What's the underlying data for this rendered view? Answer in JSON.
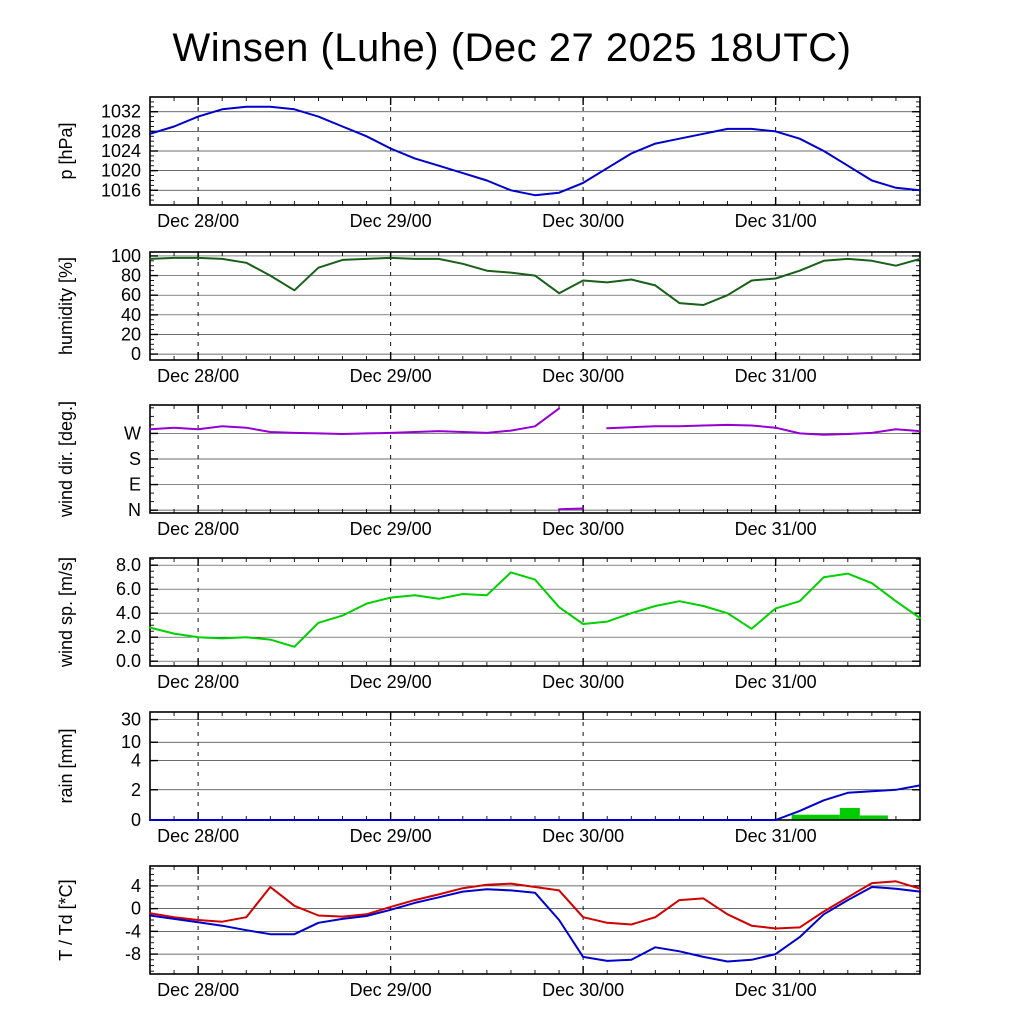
{
  "title": "Winsen (Luhe) (Dec 27 2025 18UTC)",
  "chart_data": {
    "type": "line",
    "title": "Winsen (Luhe) (Dec 27 2025 18UTC)",
    "x_start_hour": 0,
    "x_end_hour": 96,
    "x_hours_step": 3,
    "x_ticks": [
      {
        "hour": 6,
        "label": "Dec 28/00"
      },
      {
        "hour": 30,
        "label": "Dec 29/00"
      },
      {
        "hour": 54,
        "label": "Dec 30/00"
      },
      {
        "hour": 78,
        "label": "Dec 31/00"
      }
    ],
    "panels": [
      {
        "id": "pressure",
        "ylabel": "p [hPa]",
        "ymin": 1013,
        "ymax": 1035,
        "y_minor_step": 1,
        "yticks": [
          {
            "v": 1016,
            "label": "1016"
          },
          {
            "v": 1020,
            "label": "1020"
          },
          {
            "v": 1024,
            "label": "1024"
          },
          {
            "v": 1028,
            "label": "1028"
          },
          {
            "v": 1032,
            "label": "1032"
          }
        ],
        "series": [
          {
            "key": "p",
            "name": "pressure",
            "color": "#0000cc",
            "values": [
              1027.5,
              1029,
              1031,
              1032.5,
              1033,
              1033,
              1032.5,
              1031,
              1029,
              1027,
              1024.5,
              1022.5,
              1021,
              1019.5,
              1018,
              1016,
              1015,
              1015.5,
              1017.5,
              1020.5,
              1023.5,
              1025.5,
              1026.5,
              1027.5,
              1028.5,
              1028.5,
              1028,
              1026.5,
              1024,
              1021,
              1018,
              1016.5,
              1016
            ]
          }
        ]
      },
      {
        "id": "humidity",
        "ylabel": "humidity [%]",
        "ymin": -6,
        "ymax": 104,
        "y_minor_step": 5,
        "yticks": [
          {
            "v": 0,
            "label": "0"
          },
          {
            "v": 20,
            "label": "20"
          },
          {
            "v": 40,
            "label": "40"
          },
          {
            "v": 60,
            "label": "60"
          },
          {
            "v": 80,
            "label": "80"
          },
          {
            "v": 100,
            "label": "100"
          }
        ],
        "series": [
          {
            "key": "rh",
            "name": "relative humidity",
            "color": "#186018",
            "values": [
              97,
              98,
              98,
              97,
              93,
              80,
              65,
              88,
              96,
              97,
              98,
              97,
              97,
              92,
              85,
              83,
              80,
              62,
              75,
              73,
              76,
              70,
              52,
              50,
              60,
              75,
              77,
              85,
              95,
              97,
              95,
              90,
              97
            ]
          }
        ]
      },
      {
        "id": "wind-direction",
        "ylabel": "wind dir. [deg.]",
        "ymin": -10,
        "ymax": 370,
        "y_minor_step": 30,
        "yticks": [
          {
            "v": 0,
            "label": "N"
          },
          {
            "v": 90,
            "label": "E"
          },
          {
            "v": 180,
            "label": "S"
          },
          {
            "v": 270,
            "label": "W"
          }
        ],
        "series": [
          {
            "key": "dir",
            "name": "wind direction",
            "color": "#9400d3",
            "values": [
              285,
              290,
              285,
              295,
              290,
              275,
              272,
              270,
              268,
              270,
              272,
              275,
              278,
              275,
              272,
              280,
              295,
              358,
              null,
              288,
              292,
              295,
              295,
              298,
              300,
              298,
              290,
              270,
              265,
              268,
              272,
              285,
              278
            ]
          },
          {
            "key": "dir-north",
            "name": "wind direction north segment",
            "color": "#9400d3",
            "values": [
              null,
              null,
              null,
              null,
              null,
              null,
              null,
              null,
              null,
              null,
              null,
              null,
              null,
              null,
              null,
              null,
              null,
              3,
              6,
              null,
              null,
              null,
              null,
              null,
              null,
              null,
              null,
              null,
              null,
              null,
              null,
              null,
              null
            ]
          }
        ]
      },
      {
        "id": "wind-speed",
        "ylabel": "wind sp. [m/s]",
        "ymin": -0.4,
        "ymax": 8.6,
        "y_minor_step": 0.5,
        "yticks": [
          {
            "v": 0,
            "label": "0.0"
          },
          {
            "v": 2,
            "label": "2.0"
          },
          {
            "v": 4,
            "label": "4.0"
          },
          {
            "v": 6,
            "label": "6.0"
          },
          {
            "v": 8,
            "label": "8.0"
          }
        ],
        "series": [
          {
            "key": "ws",
            "name": "wind speed",
            "color": "#00d000",
            "values": [
              2.8,
              2.3,
              2.0,
              1.9,
              2.0,
              1.8,
              1.2,
              3.2,
              3.8,
              4.8,
              5.3,
              5.5,
              5.2,
              5.6,
              5.5,
              7.4,
              6.8,
              4.5,
              3.1,
              3.3,
              4.0,
              4.6,
              5.0,
              4.6,
              4.0,
              2.7,
              4.4,
              5.0,
              7.0,
              7.3,
              6.5,
              5.0,
              3.6
            ]
          }
        ]
      },
      {
        "id": "rain",
        "ylabel": "rain [mm]",
        "scale_points": [
          [
            0,
            0
          ],
          [
            2,
            0.28
          ],
          [
            4,
            0.55
          ],
          [
            10,
            0.72
          ],
          [
            30,
            0.93
          ]
        ],
        "yticks": [
          {
            "v": 0,
            "label": "0"
          },
          {
            "v": 2,
            "label": "2"
          },
          {
            "v": 4,
            "label": "4"
          },
          {
            "v": 10,
            "label": "10"
          },
          {
            "v": 30,
            "label": "30"
          }
        ],
        "bar_color": "#00cc00",
        "bars": [
          {
            "h0": 80,
            "h1": 86,
            "v": 0.35
          },
          {
            "h0": 86,
            "h1": 88.5,
            "v": 0.8
          },
          {
            "h0": 88.5,
            "h1": 92,
            "v": 0.3
          }
        ],
        "series": [
          {
            "key": "rain-accum",
            "name": "accumulated rain",
            "color": "#0000cc",
            "values": [
              0,
              0,
              0,
              0,
              0,
              0,
              0,
              0,
              0,
              0,
              0,
              0,
              0,
              0,
              0,
              0,
              0,
              0,
              0,
              0,
              0,
              0,
              0,
              0,
              0,
              0,
              0,
              0.6,
              1.3,
              1.8,
              1.9,
              2.0,
              2.3
            ]
          }
        ]
      },
      {
        "id": "temperature",
        "ylabel": "T / Td [*C]",
        "ymin": -11.5,
        "ymax": 7.5,
        "y_minor_step": 1,
        "yticks": [
          {
            "v": -8,
            "label": "-8"
          },
          {
            "v": -4,
            "label": "-4"
          },
          {
            "v": 0,
            "label": "0"
          },
          {
            "v": 4,
            "label": "4"
          }
        ],
        "series": [
          {
            "key": "T",
            "name": "temperature",
            "color": "#d00000",
            "values": [
              -0.8,
              -1.5,
              -2.0,
              -2.3,
              -1.5,
              3.8,
              0.5,
              -1.2,
              -1.4,
              -1.0,
              0.3,
              1.5,
              2.5,
              3.6,
              4.2,
              4.4,
              3.8,
              3.2,
              -1.5,
              -2.5,
              -2.8,
              -1.5,
              1.5,
              1.8,
              -1.0,
              -3.0,
              -3.5,
              -3.3,
              -0.5,
              2.0,
              4.5,
              4.8,
              3.5
            ]
          },
          {
            "key": "Td",
            "name": "dew point",
            "color": "#0000cc",
            "values": [
              -1.2,
              -1.8,
              -2.4,
              -3.0,
              -3.8,
              -4.5,
              -4.5,
              -2.5,
              -1.8,
              -1.3,
              -0.2,
              1.0,
              2.0,
              3.0,
              3.4,
              3.2,
              2.8,
              -2.0,
              -8.5,
              -9.2,
              -9.0,
              -6.8,
              -7.5,
              -8.5,
              -9.3,
              -9.0,
              -8.0,
              -5.0,
              -1.0,
              1.5,
              3.8,
              3.5,
              3.0
            ]
          }
        ]
      }
    ]
  }
}
